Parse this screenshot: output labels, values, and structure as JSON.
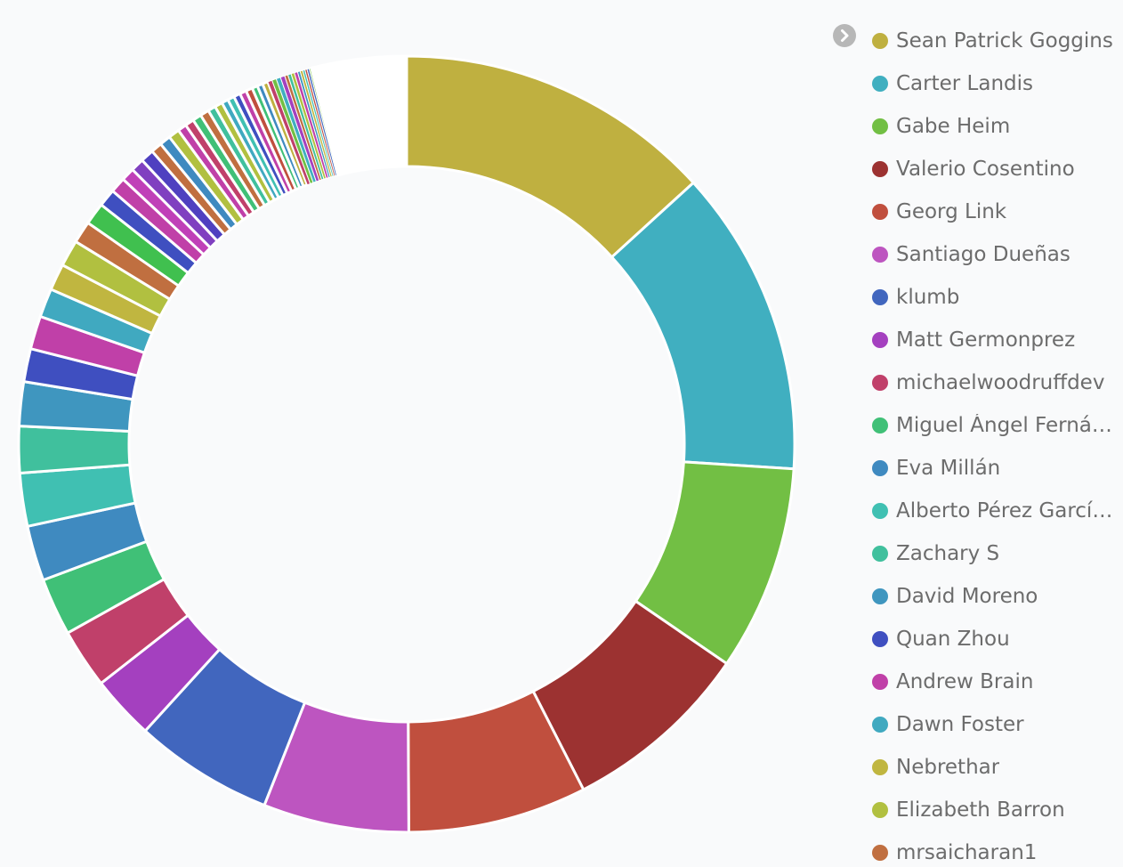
{
  "chart_data": {
    "type": "pie",
    "donut": true,
    "legend_position": "right",
    "legend_entries": [
      {
        "label": "Sean Patrick Goggins",
        "color": "#bfb040"
      },
      {
        "label": "Carter Landis",
        "color": "#40afc0"
      },
      {
        "label": "Gabe Heim",
        "color": "#72bf44"
      },
      {
        "label": "Valerio Cosentino",
        "color": "#9c3231"
      },
      {
        "label": "Georg Link",
        "color": "#c04f3e"
      },
      {
        "label": "Santiago Dueñas",
        "color": "#bd55c0"
      },
      {
        "label": "klumb",
        "color": "#4166be"
      },
      {
        "label": "Matt Germonprez",
        "color": "#a440bf"
      },
      {
        "label": "michaelwoodruffdev",
        "color": "#c0406a"
      },
      {
        "label": "Miguel Ángel Fernández",
        "color": "#40c077"
      },
      {
        "label": "Eva Millán",
        "color": "#3f8ac0"
      },
      {
        "label": "Alberto Pérez García-Plaza",
        "color": "#40c0b2"
      },
      {
        "label": "Zachary S",
        "color": "#40c09d"
      },
      {
        "label": "David Moreno",
        "color": "#3f96bf"
      },
      {
        "label": "Quan Zhou",
        "color": "#3f4fc0"
      },
      {
        "label": "Andrew Brain",
        "color": "#c040a8"
      },
      {
        "label": "Dawn Foster",
        "color": "#40a9c0"
      },
      {
        "label": "Nebrethar",
        "color": "#c0b640"
      },
      {
        "label": "Elizabeth Barron",
        "color": "#b1c040"
      },
      {
        "label": "mrsaicharan1",
        "color": "#c06f40"
      }
    ],
    "slices": [
      {
        "value": 14.4,
        "color": "#bfb040"
      },
      {
        "value": 13.9,
        "color": "#40afc0"
      },
      {
        "value": 9.3,
        "color": "#72bf44"
      },
      {
        "value": 8.6,
        "color": "#9c3231"
      },
      {
        "value": 8.1,
        "color": "#c04f3e"
      },
      {
        "value": 6.6,
        "color": "#bd55c0"
      },
      {
        "value": 6.3,
        "color": "#4166be"
      },
      {
        "value": 2.9,
        "color": "#a440bf"
      },
      {
        "value": 2.7,
        "color": "#c0406a"
      },
      {
        "value": 2.6,
        "color": "#40c077"
      },
      {
        "value": 2.5,
        "color": "#3f8ac0"
      },
      {
        "value": 2.4,
        "color": "#40c0b2"
      },
      {
        "value": 2.1,
        "color": "#40c09d"
      },
      {
        "value": 2.0,
        "color": "#3f96bf"
      },
      {
        "value": 1.5,
        "color": "#3f4fc0"
      },
      {
        "value": 1.5,
        "color": "#c040a8"
      },
      {
        "value": 1.3,
        "color": "#40a9c0"
      },
      {
        "value": 1.2,
        "color": "#c0b640"
      },
      {
        "value": 1.2,
        "color": "#b1c040"
      },
      {
        "value": 1.0,
        "color": "#c06f40"
      },
      {
        "value": 1.0,
        "color": "#40c04f"
      },
      {
        "value": 0.8,
        "color": "#3f4fc0"
      },
      {
        "value": 0.7,
        "color": "#c040a8"
      },
      {
        "value": 0.6,
        "color": "#c040b8"
      },
      {
        "value": 0.6,
        "color": "#8040c0"
      },
      {
        "value": 0.6,
        "color": "#4f40c0"
      },
      {
        "value": 0.5,
        "color": "#c06f40"
      },
      {
        "value": 0.5,
        "color": "#3f8ac0"
      },
      {
        "value": 0.5,
        "color": "#b1c040"
      },
      {
        "value": 0.4,
        "color": "#c040a8"
      },
      {
        "value": 0.4,
        "color": "#c0406a"
      },
      {
        "value": 0.4,
        "color": "#40c077"
      },
      {
        "value": 0.4,
        "color": "#c06f40"
      },
      {
        "value": 0.35,
        "color": "#40c09d"
      },
      {
        "value": 0.35,
        "color": "#b1c040"
      },
      {
        "value": 0.3,
        "color": "#40a9c0"
      },
      {
        "value": 0.3,
        "color": "#40c0b2"
      },
      {
        "value": 0.3,
        "color": "#3f4fc0"
      },
      {
        "value": 0.3,
        "color": "#c040a8"
      },
      {
        "value": 0.3,
        "color": "#c04f3e"
      },
      {
        "value": 0.25,
        "color": "#40c077"
      },
      {
        "value": 0.25,
        "color": "#3f8ac0"
      },
      {
        "value": 0.25,
        "color": "#bfb040"
      },
      {
        "value": 0.2,
        "color": "#c0406a"
      },
      {
        "value": 0.2,
        "color": "#72bf44"
      },
      {
        "value": 0.2,
        "color": "#40afc0"
      },
      {
        "value": 0.2,
        "color": "#a440bf"
      },
      {
        "value": 0.15,
        "color": "#c06f40"
      },
      {
        "value": 0.15,
        "color": "#40c09d"
      },
      {
        "value": 0.15,
        "color": "#b1c040"
      },
      {
        "value": 0.15,
        "color": "#c040a8"
      },
      {
        "value": 0.12,
        "color": "#3f96bf"
      },
      {
        "value": 0.12,
        "color": "#c0b640"
      },
      {
        "value": 0.1,
        "color": "#40c0b2"
      },
      {
        "value": 0.1,
        "color": "#c04f3e"
      },
      {
        "value": 0.1,
        "color": "#4166be"
      },
      {
        "value": 0.1,
        "color": "#72bf44"
      },
      {
        "value": 4.3,
        "color": "#ffffff"
      }
    ]
  }
}
